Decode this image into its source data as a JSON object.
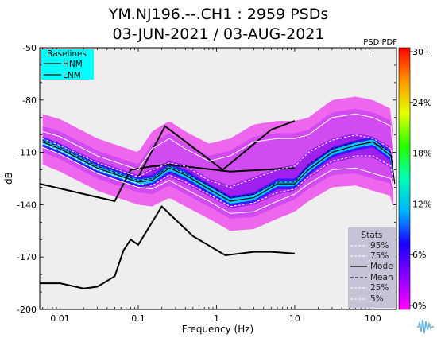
{
  "chart_data": {
    "type": "heatmap",
    "title_line1": "YM.NJ196.--.CH1 : 2959 PSDs",
    "title_line2": "03-JUN-2021 / 03-AUG-2021",
    "xlabel": "Frequency (Hz)",
    "ylabel": "dB",
    "xscale": "log",
    "xlim": [
      0.0055,
      200
    ],
    "ylim": [
      -200,
      -50
    ],
    "yticks": [
      -50,
      -80,
      -110,
      -140,
      -170,
      -200
    ],
    "xticks": [
      {
        "value": 0.01,
        "label": "0.01"
      },
      {
        "value": 0.1,
        "label": "0.1"
      },
      {
        "value": 1,
        "label": "1"
      },
      {
        "value": 10,
        "label": "10"
      },
      {
        "value": 100,
        "label": "100"
      }
    ],
    "colorbar": {
      "label": "PSD PDF",
      "tick_labels": [
        "30+",
        "24%",
        "18%",
        "12%",
        "6%",
        "0%"
      ],
      "range_percent": [
        0,
        30
      ],
      "colors": [
        "#ff00ff",
        "#8a00ff",
        "#1a00ff",
        "#00b4ff",
        "#00ffb4",
        "#28ff00",
        "#e6ff00",
        "#ff9600",
        "#ff0000"
      ]
    },
    "baselines_legend": {
      "title": "Baselines",
      "items": [
        "HNM",
        "LNM"
      ],
      "background": "#00ffff"
    },
    "stats_legend": {
      "title": "Stats",
      "items": [
        "95%",
        "75%",
        "Mode",
        "Mean",
        "25%",
        "5%"
      ],
      "background": "#c8c2d6"
    },
    "background_color": "#eeeeee",
    "hnm": {
      "x": [
        0.1,
        0.22,
        1.2,
        5,
        10
      ],
      "y": [
        -124,
        -95,
        -120,
        -97,
        -92
      ]
    },
    "lnm": {
      "x": [
        0.0055,
        0.05,
        0.08,
        0.15,
        0.25,
        1.5,
        10
      ],
      "y": [
        -128,
        -138,
        -120,
        -118,
        -117,
        -121,
        -119
      ]
    },
    "lnm_low": {
      "x": [
        0.0055,
        0.01,
        0.02,
        0.03,
        0.05,
        0.065,
        0.08,
        0.1,
        0.2,
        0.5,
        1,
        1.3,
        3,
        5,
        10
      ],
      "y": [
        -185,
        -185,
        -188,
        -187,
        -181,
        -166,
        -160,
        -163,
        -141,
        -158,
        -166,
        -169,
        -167,
        -167,
        -168
      ]
    },
    "stat_curves": {
      "p95": {
        "x": [
          0.006,
          0.01,
          0.03,
          0.1,
          0.15,
          0.25,
          0.4,
          0.8,
          1.5,
          3,
          6,
          10,
          15,
          30,
          60,
          100,
          170,
          190
        ],
        "y": [
          -98,
          -101,
          -112,
          -120,
          -108,
          -102,
          -108,
          -115,
          -112,
          -104,
          -102,
          -102,
          -100,
          -90,
          -88,
          -90,
          -95,
          -120
        ]
      },
      "p75": {
        "x": [
          0.006,
          0.01,
          0.03,
          0.1,
          0.15,
          0.25,
          0.4,
          0.8,
          1.5,
          3,
          6,
          10,
          15,
          30,
          60,
          100,
          170,
          190
        ],
        "y": [
          -102,
          -106,
          -116,
          -124,
          -120,
          -116,
          -118,
          -126,
          -130,
          -125,
          -120,
          -118,
          -110,
          -103,
          -100,
          -102,
          -108,
          -125
        ]
      },
      "mode": {
        "x": [
          0.006,
          0.01,
          0.03,
          0.1,
          0.15,
          0.25,
          0.4,
          0.8,
          1.5,
          3,
          6,
          10,
          15,
          30,
          60,
          100,
          170,
          190
        ],
        "y": [
          -104,
          -108,
          -119,
          -127,
          -126,
          -119,
          -123,
          -131,
          -138,
          -136,
          -128,
          -128,
          -120,
          -110,
          -106,
          -104,
          -112,
          -128
        ]
      },
      "mean": {
        "x": [
          0.006,
          0.01,
          0.03,
          0.1,
          0.15,
          0.25,
          0.4,
          0.8,
          1.5,
          3,
          6,
          10,
          15,
          30,
          60,
          100,
          170,
          190
        ],
        "y": [
          -103,
          -107,
          -118,
          -126,
          -125,
          -118,
          -122,
          -129,
          -136,
          -134,
          -127,
          -127,
          -117,
          -108,
          -104,
          -104,
          -110,
          -128
        ]
      },
      "p25": {
        "x": [
          0.006,
          0.01,
          0.03,
          0.1,
          0.15,
          0.25,
          0.4,
          0.8,
          1.5,
          3,
          6,
          10,
          15,
          30,
          60,
          100,
          170,
          190
        ],
        "y": [
          -105,
          -109,
          -120,
          -128,
          -129,
          -123,
          -127,
          -134,
          -141,
          -139,
          -133,
          -131,
          -124,
          -115,
          -112,
          -112,
          -118,
          -132
        ]
      },
      "p5": {
        "x": [
          0.006,
          0.01,
          0.03,
          0.1,
          0.15,
          0.25,
          0.4,
          0.8,
          1.5,
          3,
          6,
          10,
          15,
          30,
          60,
          100,
          170,
          190
        ],
        "y": [
          -107,
          -111,
          -122,
          -130,
          -131,
          -126,
          -131,
          -138,
          -145,
          -144,
          -138,
          -134,
          -128,
          -120,
          -119,
          -122,
          -125,
          -136
        ]
      }
    }
  }
}
